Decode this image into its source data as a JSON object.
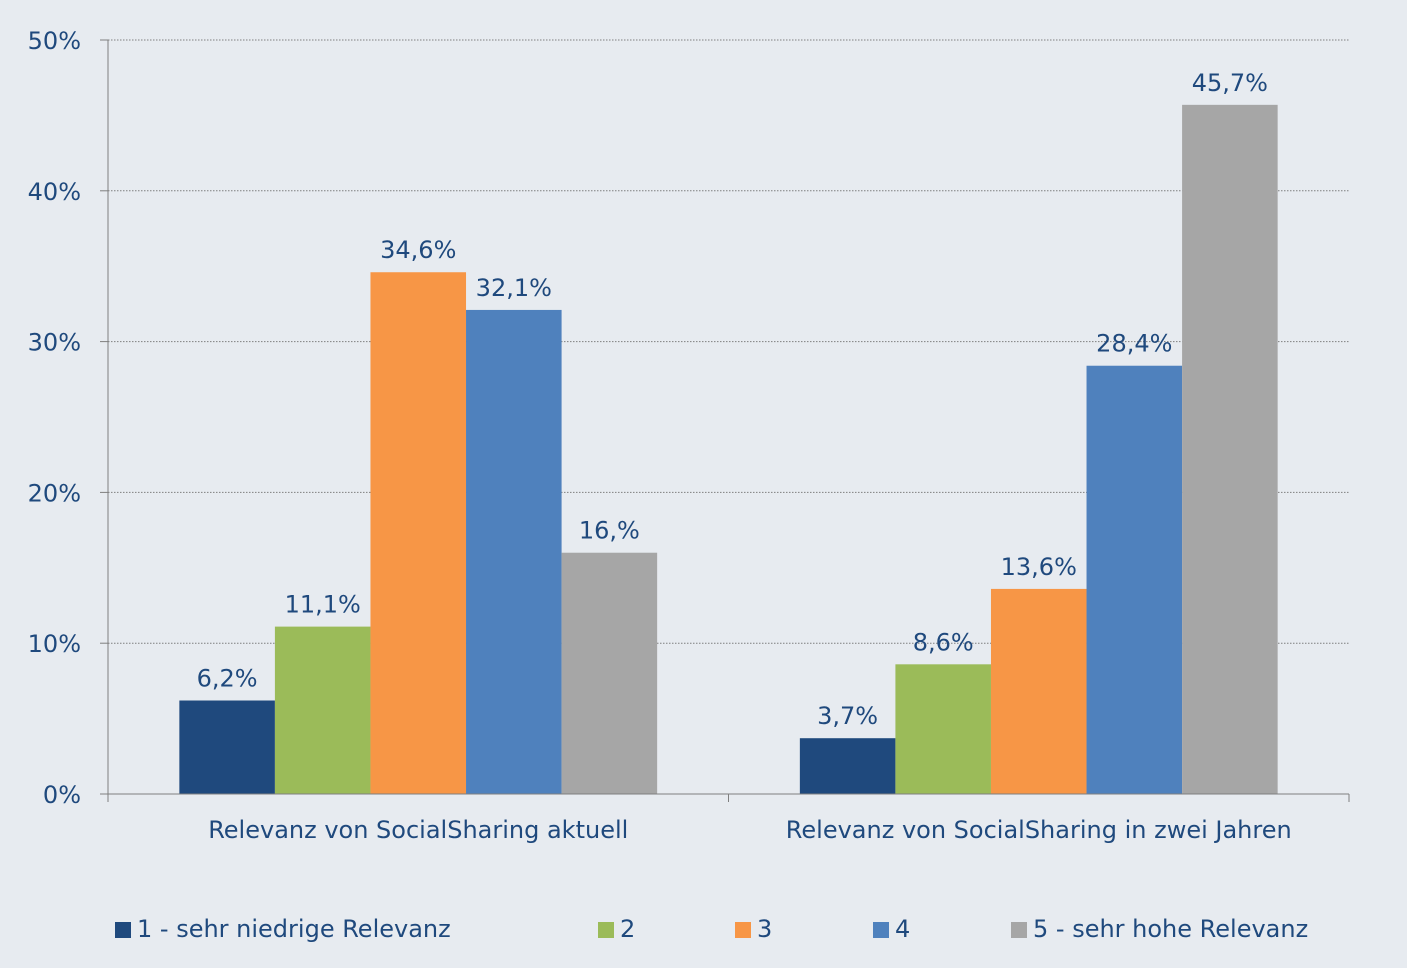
{
  "chart_data": {
    "type": "bar",
    "title": "",
    "xlabel": "",
    "ylabel": "",
    "ylim": [
      0,
      50
    ],
    "yticks": [
      0,
      10,
      20,
      30,
      40,
      50
    ],
    "ytick_labels": [
      "0%",
      "10%",
      "20%",
      "30%",
      "40%",
      "50%"
    ],
    "grid": true,
    "legend_position": "bottom",
    "categories": [
      "Relevanz von SocialSharing aktuell",
      "Relevanz von SocialSharing in zwei Jahren"
    ],
    "series": [
      {
        "name": "1 - sehr niedrige Relevanz",
        "color": "#1f497d",
        "values": [
          6.2,
          3.7
        ],
        "labels": [
          "6,2%",
          "3,7%"
        ]
      },
      {
        "name": "2",
        "color": "#9bbb59",
        "values": [
          11.1,
          8.6
        ],
        "labels": [
          "11,1%",
          "8,6%"
        ]
      },
      {
        "name": "3",
        "color": "#f79646",
        "values": [
          34.6,
          13.6
        ],
        "labels": [
          "34,6%",
          "13,6%"
        ]
      },
      {
        "name": "4",
        "color": "#4f81bd",
        "values": [
          32.1,
          28.4
        ],
        "labels": [
          "32,1%",
          "28,4%"
        ]
      },
      {
        "name": "5 - sehr hohe Relevanz",
        "color": "#a6a6a6",
        "values": [
          16.0,
          45.7
        ],
        "labels": [
          "16,%",
          "45,7%"
        ]
      }
    ],
    "text_color": "#1f497d"
  }
}
